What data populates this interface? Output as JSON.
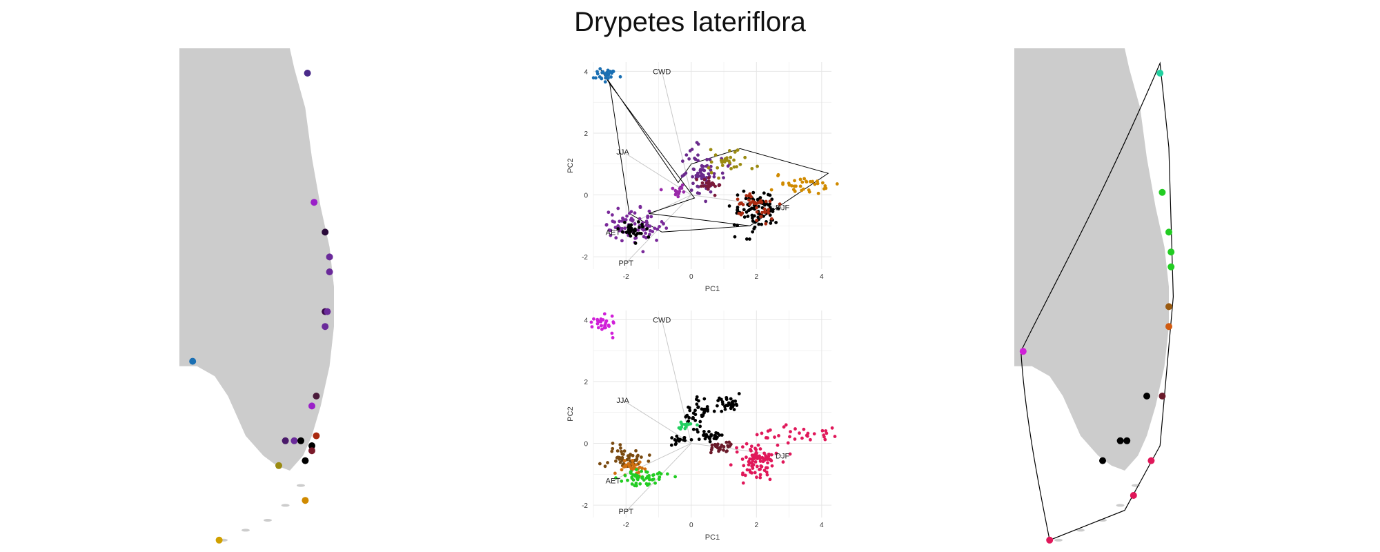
{
  "title": "Drypetes lateriflora",
  "colors": {
    "land": "#cccccc",
    "grid": "#e6e6e6",
    "arrow": "#c8c8c8",
    "hull": "#000000"
  },
  "chart_data": [
    {
      "type": "scatter",
      "panel": "pca-top",
      "xlabel": "PC1",
      "ylabel": "PC2",
      "xlim": [
        -3,
        4.3
      ],
      "ylim": [
        -2.4,
        4.3
      ],
      "xticks": [
        -2,
        0,
        2,
        4
      ],
      "yticks": [
        -2,
        0,
        2,
        4
      ],
      "arrows": [
        {
          "label": "CWD",
          "x": -0.9,
          "y": 4.0
        },
        {
          "label": "JJA",
          "x": -2.1,
          "y": 1.4
        },
        {
          "label": "DJF",
          "x": 2.8,
          "y": -0.4
        },
        {
          "label": "AET",
          "x": -2.4,
          "y": -1.2
        },
        {
          "label": "PPT",
          "x": -2.0,
          "y": -2.2
        }
      ],
      "clusters": [
        {
          "cx": -2.6,
          "cy": 3.9,
          "sx": 0.15,
          "sy": 0.12,
          "n": 30,
          "color": "#1a6fb3"
        },
        {
          "cx": 0.3,
          "cy": 0.8,
          "sx": 0.35,
          "sy": 0.4,
          "n": 70,
          "color": "#6a2a8c"
        },
        {
          "cx": 1.2,
          "cy": 1.1,
          "sx": 0.3,
          "sy": 0.2,
          "n": 30,
          "color": "#9a8a10"
        },
        {
          "cx": 0.6,
          "cy": 0.3,
          "sx": 0.2,
          "sy": 0.15,
          "n": 25,
          "color": "#7a1a3a"
        },
        {
          "cx": 2.0,
          "cy": -0.5,
          "sx": 0.35,
          "sy": 0.3,
          "n": 90,
          "color": "#000000"
        },
        {
          "cx": 1.9,
          "cy": -0.4,
          "sx": 0.3,
          "sy": 0.25,
          "n": 40,
          "color": "#aa2a10"
        },
        {
          "cx": 3.3,
          "cy": 0.3,
          "sx": 0.55,
          "sy": 0.15,
          "n": 35,
          "color": "#d08a00"
        },
        {
          "cx": -1.8,
          "cy": -1.0,
          "sx": 0.45,
          "sy": 0.25,
          "n": 80,
          "color": "#7a2a9a"
        },
        {
          "cx": -1.8,
          "cy": -1.1,
          "sx": 0.2,
          "sy": 0.15,
          "n": 30,
          "color": "#000000"
        },
        {
          "cx": -0.4,
          "cy": 0.1,
          "sx": 0.15,
          "sy": 0.1,
          "n": 15,
          "color": "#9a2aaa"
        }
      ],
      "hull": [
        [
          -2.8,
          4.1
        ],
        [
          -2.5,
          3.6
        ],
        [
          0.1,
          -0.1
        ],
        [
          -1.3,
          -0.6
        ],
        [
          1.8,
          -1.0
        ],
        [
          4.2,
          0.7
        ],
        [
          1.5,
          1.5
        ],
        [
          0.0,
          1.0
        ],
        [
          -0.4,
          0.4
        ],
        [
          -2.8,
          4.1
        ]
      ],
      "hull2": [
        [
          -2.5,
          3.6
        ],
        [
          -1.9,
          -0.6
        ],
        [
          -0.9,
          -1.2
        ],
        [
          1.8,
          -1.0
        ]
      ]
    },
    {
      "type": "scatter",
      "panel": "pca-bottom",
      "xlabel": "PC1",
      "ylabel": "PC2",
      "xlim": [
        -3,
        4.3
      ],
      "ylim": [
        -2.4,
        4.3
      ],
      "xticks": [
        -2,
        0,
        2,
        4
      ],
      "yticks": [
        -2,
        0,
        2,
        4
      ],
      "arrows": [
        {
          "label": "CWD",
          "x": -0.9,
          "y": 4.0
        },
        {
          "label": "JJA",
          "x": -2.1,
          "y": 1.4
        },
        {
          "label": "DJF",
          "x": 2.8,
          "y": -0.4
        },
        {
          "label": "AET",
          "x": -2.4,
          "y": -1.2
        },
        {
          "label": "PPT",
          "x": -2.0,
          "y": -2.2
        }
      ],
      "clusters": [
        {
          "cx": -2.7,
          "cy": 3.9,
          "sx": 0.2,
          "sy": 0.15,
          "n": 30,
          "color": "#d020d8"
        },
        {
          "cx": 0.2,
          "cy": 1.0,
          "sx": 0.2,
          "sy": 0.2,
          "n": 40,
          "color": "#000000"
        },
        {
          "cx": 1.1,
          "cy": 1.3,
          "sx": 0.2,
          "sy": 0.12,
          "n": 30,
          "color": "#000000"
        },
        {
          "cx": 0.5,
          "cy": 0.3,
          "sx": 0.2,
          "sy": 0.12,
          "n": 30,
          "color": "#000000"
        },
        {
          "cx": -0.4,
          "cy": 0.1,
          "sx": 0.1,
          "sy": 0.08,
          "n": 15,
          "color": "#000000"
        },
        {
          "cx": -0.2,
          "cy": 0.6,
          "sx": 0.12,
          "sy": 0.08,
          "n": 15,
          "color": "#22d060"
        },
        {
          "cx": 0.9,
          "cy": -0.1,
          "sx": 0.2,
          "sy": 0.1,
          "n": 25,
          "color": "#6a1a2a"
        },
        {
          "cx": 2.0,
          "cy": -0.6,
          "sx": 0.35,
          "sy": 0.3,
          "n": 90,
          "color": "#e0185a"
        },
        {
          "cx": 3.3,
          "cy": 0.3,
          "sx": 0.55,
          "sy": 0.15,
          "n": 30,
          "color": "#e0185a"
        },
        {
          "cx": -2.0,
          "cy": -0.5,
          "sx": 0.3,
          "sy": 0.2,
          "n": 50,
          "color": "#7a4a10"
        },
        {
          "cx": -1.8,
          "cy": -0.8,
          "sx": 0.2,
          "sy": 0.15,
          "n": 30,
          "color": "#d07010"
        },
        {
          "cx": -1.5,
          "cy": -1.1,
          "sx": 0.35,
          "sy": 0.15,
          "n": 50,
          "color": "#22cc22"
        }
      ]
    }
  ],
  "maps": {
    "left": {
      "points": [
        {
          "x": 0.58,
          "y": 0.05,
          "color": "#4a2a8a"
        },
        {
          "x": 0.61,
          "y": 0.31,
          "color": "#9a20c8"
        },
        {
          "x": 0.66,
          "y": 0.37,
          "color": "#2a0a3a"
        },
        {
          "x": 0.68,
          "y": 0.42,
          "color": "#6a2a9a"
        },
        {
          "x": 0.68,
          "y": 0.45,
          "color": "#6a2a9a"
        },
        {
          "x": 0.66,
          "y": 0.53,
          "color": "#3a0a4a"
        },
        {
          "x": 0.67,
          "y": 0.53,
          "color": "#6a2a9a"
        },
        {
          "x": 0.66,
          "y": 0.56,
          "color": "#6a2a9a"
        },
        {
          "x": 0.06,
          "y": 0.63,
          "color": "#1a6fb3"
        },
        {
          "x": 0.62,
          "y": 0.7,
          "color": "#4a1a3a"
        },
        {
          "x": 0.6,
          "y": 0.72,
          "color": "#9a20c8"
        },
        {
          "x": 0.6,
          "y": 0.8,
          "color": "#000000"
        },
        {
          "x": 0.6,
          "y": 0.81,
          "color": "#7a1a2a"
        },
        {
          "x": 0.48,
          "y": 0.79,
          "color": "#4a1a6a"
        },
        {
          "x": 0.52,
          "y": 0.79,
          "color": "#6a2a9a"
        },
        {
          "x": 0.55,
          "y": 0.79,
          "color": "#000000"
        },
        {
          "x": 0.45,
          "y": 0.84,
          "color": "#9a8a10"
        },
        {
          "x": 0.57,
          "y": 0.83,
          "color": "#000000"
        },
        {
          "x": 0.62,
          "y": 0.78,
          "color": "#aa2a10"
        },
        {
          "x": 0.57,
          "y": 0.91,
          "color": "#d08a00"
        },
        {
          "x": 0.18,
          "y": 0.99,
          "color": "#d0a000"
        }
      ]
    },
    "right": {
      "points": [
        {
          "x": 0.66,
          "y": 0.05,
          "color": "#22d0a0"
        },
        {
          "x": 0.67,
          "y": 0.29,
          "color": "#22cc22"
        },
        {
          "x": 0.7,
          "y": 0.37,
          "color": "#22cc22"
        },
        {
          "x": 0.71,
          "y": 0.41,
          "color": "#22cc22"
        },
        {
          "x": 0.71,
          "y": 0.44,
          "color": "#22cc22"
        },
        {
          "x": 0.7,
          "y": 0.52,
          "color": "#9a5a10"
        },
        {
          "x": 0.7,
          "y": 0.56,
          "color": "#d05a10"
        },
        {
          "x": 0.04,
          "y": 0.61,
          "color": "#d020d8"
        },
        {
          "x": 0.6,
          "y": 0.7,
          "color": "#000000"
        },
        {
          "x": 0.67,
          "y": 0.7,
          "color": "#6a1a2a"
        },
        {
          "x": 0.48,
          "y": 0.79,
          "color": "#000000"
        },
        {
          "x": 0.51,
          "y": 0.79,
          "color": "#000000"
        },
        {
          "x": 0.4,
          "y": 0.83,
          "color": "#000000"
        },
        {
          "x": 0.62,
          "y": 0.83,
          "color": "#e0185a"
        },
        {
          "x": 0.54,
          "y": 0.9,
          "color": "#e0185a"
        },
        {
          "x": 0.16,
          "y": 0.99,
          "color": "#e0185a"
        }
      ]
    }
  }
}
